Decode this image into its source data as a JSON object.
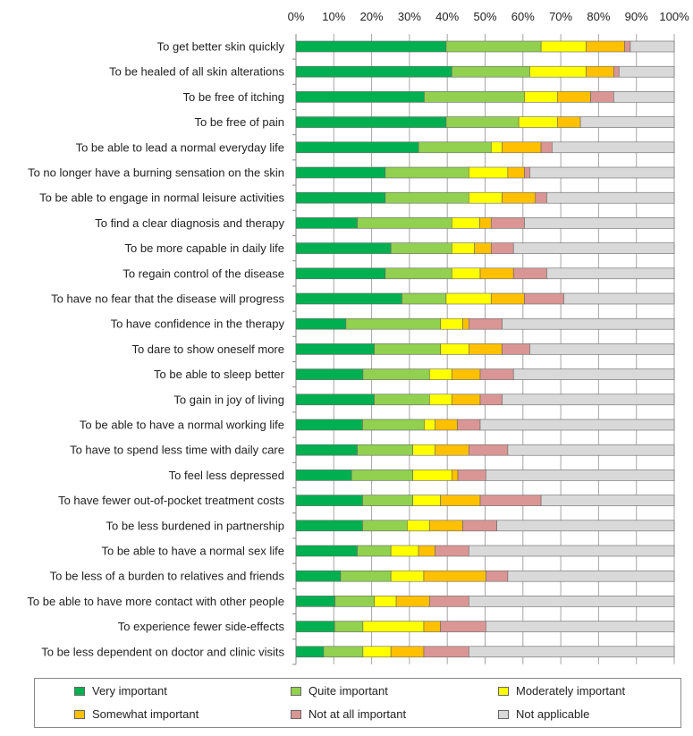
{
  "chart_data": {
    "type": "bar",
    "orientation": "horizontal",
    "stacked": "percent",
    "title": "",
    "xlabel": "",
    "ylabel": "",
    "xlim": [
      0,
      100
    ],
    "x_ticks": [
      "0%",
      "10%",
      "20%",
      "30%",
      "40%",
      "50%",
      "60%",
      "70%",
      "80%",
      "90%",
      "100%"
    ],
    "grid": "vertical",
    "legend_position": "bottom",
    "categories": [
      "To get better skin quickly",
      "To be healed of all skin alterations",
      "To be free of itching",
      "To be free of pain",
      "To be able to lead a normal everyday life",
      "To no longer have a burning sensation on the skin",
      "To be able to engage in normal leisure activities",
      "To find a clear diagnosis and therapy",
      "To be more capable in daily life",
      "To regain control of the disease",
      "To have no fear that the disease will progress",
      "To have confidence in the therapy",
      "To dare to show oneself more",
      "To be able to sleep better",
      "To gain in joy of living",
      "To be able to have a normal working life",
      "To have to spend less time with daily care",
      "To feel less depressed",
      "To have fewer out-of-pocket treatment costs",
      "To be less burdened in partnership",
      "To be able to have a normal sex life",
      "To be less of a burden to relatives and friends",
      "To be able to have more contact with other people",
      "To experience fewer side-effects",
      "To be less dependent on doctor and clinic visits"
    ],
    "series": [
      {
        "name": "Very important",
        "color": "#00b050",
        "values": [
          39.7,
          41.2,
          33.9,
          39.7,
          32.4,
          23.6,
          23.6,
          16.2,
          25.1,
          23.6,
          28.0,
          13.2,
          20.7,
          17.7,
          20.7,
          17.6,
          16.2,
          14.7,
          17.6,
          17.6,
          16.2,
          11.8,
          10.3,
          10.2,
          7.3
        ]
      },
      {
        "name": "Quite important",
        "color": "#92d050",
        "values": [
          25.1,
          20.6,
          26.5,
          19.2,
          19.2,
          22.1,
          22.1,
          25.0,
          16.1,
          17.6,
          11.7,
          25.0,
          17.5,
          17.6,
          14.6,
          16.3,
          14.7,
          16.2,
          13.3,
          11.8,
          8.9,
          13.3,
          10.4,
          7.5,
          10.4
        ]
      },
      {
        "name": "Moderately important",
        "color": "#ffff00",
        "values": [
          11.9,
          14.9,
          8.7,
          10.2,
          2.9,
          10.3,
          8.8,
          7.4,
          6.0,
          7.5,
          11.9,
          5.9,
          7.5,
          5.9,
          5.9,
          2.9,
          5.9,
          10.3,
          7.3,
          5.9,
          7.3,
          8.7,
          5.8,
          16.1,
          7.4
        ]
      },
      {
        "name": "Somewhat important",
        "color": "#ffc000",
        "values": [
          10.2,
          7.3,
          8.8,
          6.1,
          10.3,
          4.4,
          8.8,
          3.0,
          4.4,
          8.8,
          8.8,
          1.6,
          8.8,
          7.5,
          7.5,
          5.9,
          8.9,
          1.6,
          10.5,
          8.8,
          4.4,
          16.4,
          8.8,
          4.4,
          8.7
        ]
      },
      {
        "name": "Not at all important",
        "color": "#da9694",
        "values": [
          1.5,
          1.4,
          6.1,
          0,
          2.9,
          1.4,
          3.0,
          8.8,
          5.9,
          8.8,
          10.4,
          8.8,
          7.3,
          8.8,
          5.8,
          6.0,
          10.3,
          7.4,
          16.1,
          9.0,
          8.9,
          5.8,
          10.4,
          12.0,
          11.9
        ]
      },
      {
        "name": "Not applicable",
        "color": "#d9d9d9",
        "values": [
          11.6,
          14.6,
          16.0,
          24.8,
          32.3,
          38.2,
          33.7,
          39.6,
          42.5,
          33.7,
          29.2,
          45.5,
          38.2,
          42.5,
          45.5,
          51.3,
          44.0,
          49.8,
          35.2,
          46.9,
          54.3,
          44.0,
          54.3,
          49.8,
          54.3
        ]
      }
    ]
  }
}
